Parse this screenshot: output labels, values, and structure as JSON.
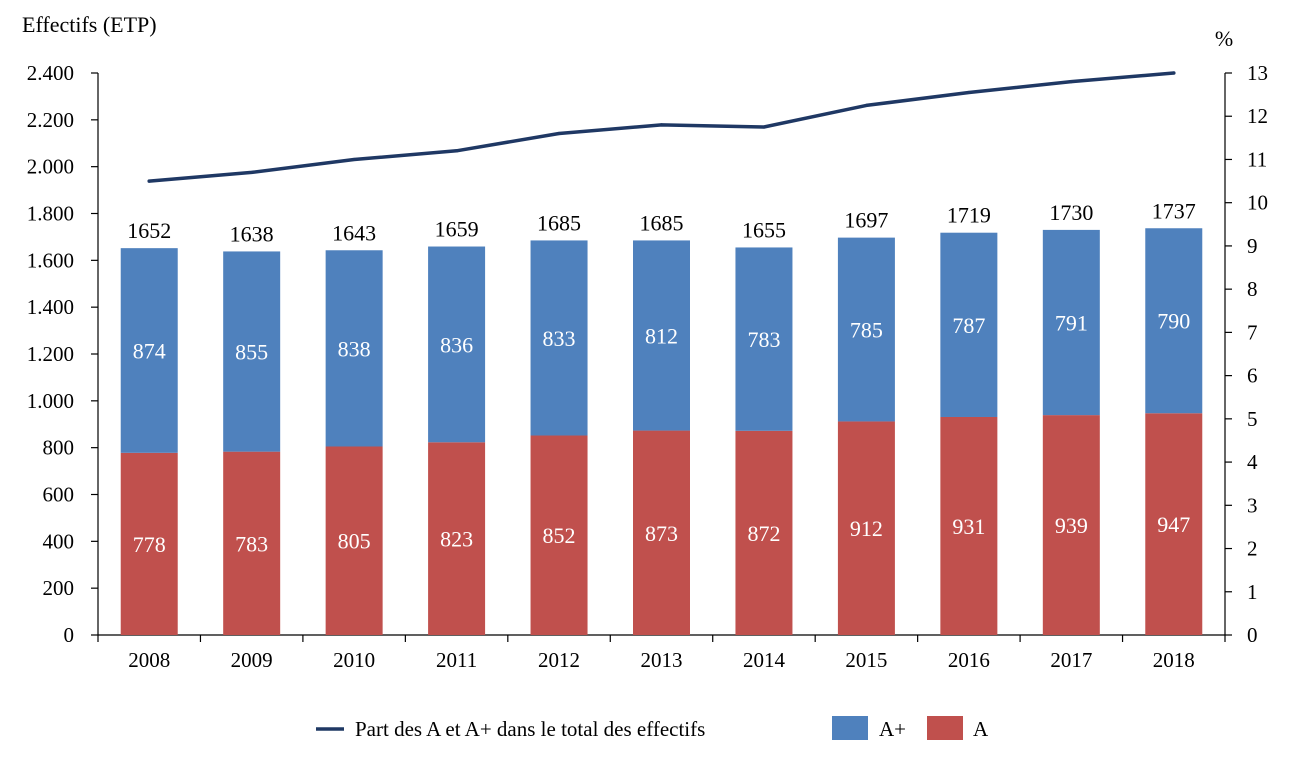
{
  "chart_data": {
    "type": "bar",
    "stacked": true,
    "categories": [
      "2008",
      "2009",
      "2010",
      "2011",
      "2012",
      "2013",
      "2014",
      "2015",
      "2016",
      "2017",
      "2018"
    ],
    "series": [
      {
        "name": "A",
        "axis": "left",
        "color": "#c0504d",
        "values": [
          778,
          783,
          805,
          823,
          852,
          873,
          872,
          912,
          931,
          939,
          947
        ]
      },
      {
        "name": "A+",
        "axis": "left",
        "color": "#4f81bd",
        "values": [
          874,
          855,
          838,
          836,
          833,
          812,
          783,
          785,
          787,
          791,
          790
        ]
      }
    ],
    "totals": [
      1652,
      1638,
      1643,
      1659,
      1685,
      1685,
      1655,
      1697,
      1719,
      1730,
      1737
    ],
    "line_series": {
      "name": "Part des A et A+ dans le total des effectifs",
      "type": "line",
      "axis": "right",
      "color": "#1f3864",
      "values": [
        10.5,
        10.7,
        11.0,
        11.2,
        11.6,
        11.8,
        11.75,
        12.25,
        12.55,
        12.8,
        13.0
      ]
    },
    "ylabel": "Effectifs (ETP)",
    "ylabel_right": "%",
    "ylim": [
      0,
      2400
    ],
    "y_ticks": [
      0,
      200,
      400,
      600,
      800,
      1000,
      1200,
      1400,
      1600,
      1800,
      2000,
      2200,
      2400
    ],
    "y_tick_labels": [
      "0",
      "200",
      "400",
      "600",
      "800",
      "1.000",
      "1.200",
      "1.400",
      "1.600",
      "1.800",
      "2.000",
      "2.200",
      "2.400"
    ],
    "y2lim": [
      0,
      13
    ],
    "y2_ticks": [
      0,
      1,
      2,
      3,
      4,
      5,
      6,
      7,
      8,
      9,
      10,
      11,
      12,
      13
    ],
    "y2_tick_labels": [
      "0",
      "1",
      "2",
      "3",
      "4",
      "5",
      "6",
      "7",
      "8",
      "9",
      "10",
      "11",
      "12",
      "13"
    ],
    "legend": {
      "placement": "bottom-center",
      "items": [
        {
          "label": "Part des A et A+ dans le total des effectifs",
          "kind": "line",
          "color": "#1f3864"
        },
        {
          "label": "A+",
          "kind": "box",
          "color": "#4f81bd"
        },
        {
          "label": "A",
          "kind": "box",
          "color": "#c0504d"
        }
      ]
    },
    "grid": false
  }
}
